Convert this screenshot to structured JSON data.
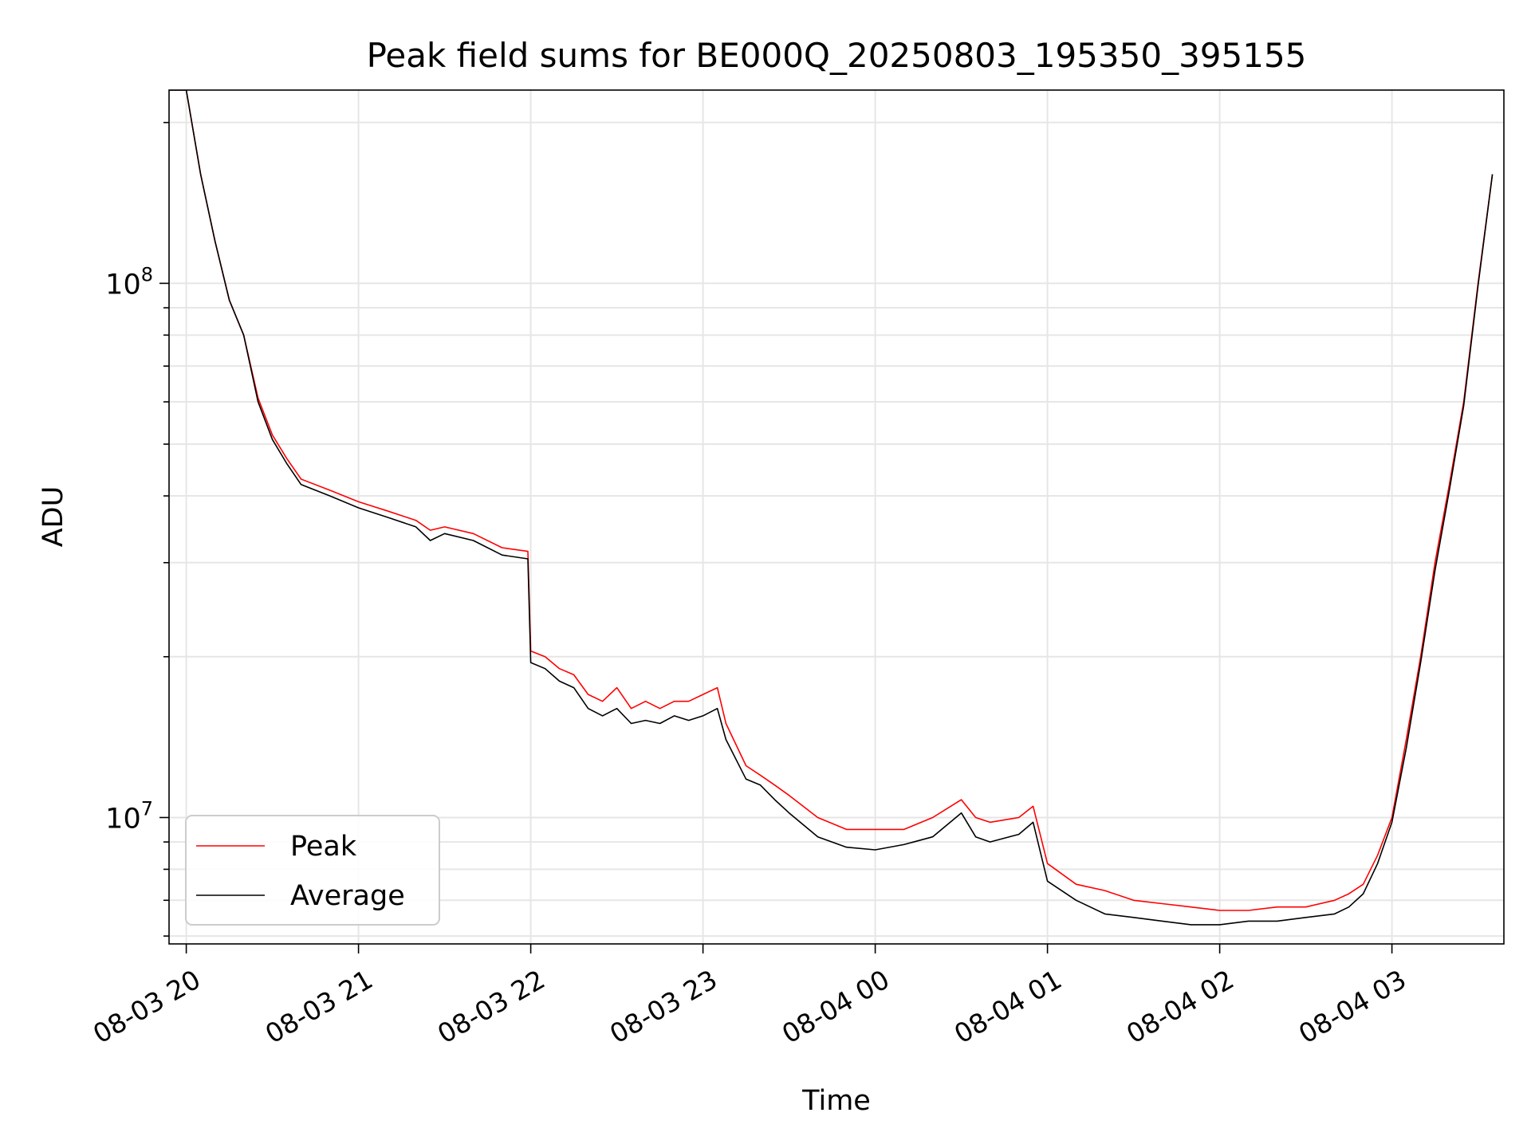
{
  "chart_data": {
    "type": "line",
    "title": "Peak field sums for BE000Q_20250803_195350_395155",
    "xlabel": "Time",
    "ylabel": "ADU",
    "y_scale": "log",
    "grid": true,
    "legend_position": "lower-left",
    "xlim": [
      "2025-08-03 19:54",
      "2025-08-04 03:39"
    ],
    "ylim": [
      5800000.0,
      230000000.0
    ],
    "x_ticks": [
      {
        "t": "2025-08-03 20:00",
        "label": "08-03 20"
      },
      {
        "t": "2025-08-03 21:00",
        "label": "08-03 21"
      },
      {
        "t": "2025-08-03 22:00",
        "label": "08-03 22"
      },
      {
        "t": "2025-08-03 23:00",
        "label": "08-03 23"
      },
      {
        "t": "2025-08-04 00:00",
        "label": "08-04 00"
      },
      {
        "t": "2025-08-04 01:00",
        "label": "08-04 01"
      },
      {
        "t": "2025-08-04 02:00",
        "label": "08-04 02"
      },
      {
        "t": "2025-08-04 03:00",
        "label": "08-04 03"
      }
    ],
    "y_major_ticks": [
      {
        "value": 10000000,
        "base": "10",
        "exp": "7"
      },
      {
        "value": 100000000,
        "base": "10",
        "exp": "8"
      }
    ],
    "y_minor_ticks": [
      6000000,
      7000000,
      8000000,
      9000000,
      20000000,
      30000000,
      40000000,
      50000000,
      60000000,
      70000000,
      80000000,
      90000000,
      200000000
    ],
    "series": [
      {
        "name": "Peak",
        "color": "#ff0000",
        "x": [
          "2025-08-03 19:54",
          "2025-08-03 20:00",
          "2025-08-03 20:05",
          "2025-08-03 20:10",
          "2025-08-03 20:15",
          "2025-08-03 20:20",
          "2025-08-03 20:25",
          "2025-08-03 20:30",
          "2025-08-03 20:35",
          "2025-08-03 20:40",
          "2025-08-03 20:50",
          "2025-08-03 21:00",
          "2025-08-03 21:10",
          "2025-08-03 21:20",
          "2025-08-03 21:25",
          "2025-08-03 21:30",
          "2025-08-03 21:40",
          "2025-08-03 21:50",
          "2025-08-03 21:59",
          "2025-08-03 22:00",
          "2025-08-03 22:05",
          "2025-08-03 22:10",
          "2025-08-03 22:15",
          "2025-08-03 22:20",
          "2025-08-03 22:25",
          "2025-08-03 22:30",
          "2025-08-03 22:35",
          "2025-08-03 22:40",
          "2025-08-03 22:45",
          "2025-08-03 22:50",
          "2025-08-03 22:55",
          "2025-08-03 23:00",
          "2025-08-03 23:05",
          "2025-08-03 23:08",
          "2025-08-03 23:15",
          "2025-08-03 23:20",
          "2025-08-03 23:25",
          "2025-08-03 23:30",
          "2025-08-03 23:40",
          "2025-08-03 23:50",
          "2025-08-04 00:00",
          "2025-08-04 00:10",
          "2025-08-04 00:20",
          "2025-08-04 00:30",
          "2025-08-04 00:35",
          "2025-08-04 00:40",
          "2025-08-04 00:50",
          "2025-08-04 00:55",
          "2025-08-04 01:00",
          "2025-08-04 01:10",
          "2025-08-04 01:20",
          "2025-08-04 01:30",
          "2025-08-04 01:40",
          "2025-08-04 01:50",
          "2025-08-04 02:00",
          "2025-08-04 02:10",
          "2025-08-04 02:20",
          "2025-08-04 02:30",
          "2025-08-04 02:40",
          "2025-08-04 02:45",
          "2025-08-04 02:50",
          "2025-08-04 02:55",
          "2025-08-04 03:00",
          "2025-08-04 03:05",
          "2025-08-04 03:10",
          "2025-08-04 03:15",
          "2025-08-04 03:20",
          "2025-08-04 03:25",
          "2025-08-04 03:30",
          "2025-08-04 03:35"
        ],
        "y": [
          230000000,
          230000000,
          160000000,
          120000000,
          93000000,
          80000000,
          61000000,
          52000000,
          47000000,
          43000000,
          41000000,
          39000000,
          37500000,
          36000000,
          34500000,
          35000000,
          34000000,
          32000000,
          31500000,
          20500000,
          20000000,
          19000000,
          18500000,
          17000000,
          16500000,
          17500000,
          16000000,
          16500000,
          16000000,
          16500000,
          16500000,
          17000000,
          17500000,
          15000000,
          12500000,
          12000000,
          11500000,
          11000000,
          10000000,
          9500000,
          9500000,
          9500000,
          10000000,
          10800000,
          10000000,
          9800000,
          10000000,
          10500000,
          8200000,
          7500000,
          7300000,
          7000000,
          6900000,
          6800000,
          6700000,
          6700000,
          6800000,
          6800000,
          7000000,
          7200000,
          7500000,
          8500000,
          10000000,
          14000000,
          20000000,
          30000000,
          42000000,
          60000000,
          100000000,
          160000000
        ]
      },
      {
        "name": "Average",
        "color": "#000000",
        "x": [
          "2025-08-03 19:54",
          "2025-08-03 20:00",
          "2025-08-03 20:05",
          "2025-08-03 20:10",
          "2025-08-03 20:15",
          "2025-08-03 20:20",
          "2025-08-03 20:25",
          "2025-08-03 20:30",
          "2025-08-03 20:35",
          "2025-08-03 20:40",
          "2025-08-03 20:50",
          "2025-08-03 21:00",
          "2025-08-03 21:10",
          "2025-08-03 21:20",
          "2025-08-03 21:25",
          "2025-08-03 21:30",
          "2025-08-03 21:40",
          "2025-08-03 21:50",
          "2025-08-03 21:59",
          "2025-08-03 22:00",
          "2025-08-03 22:05",
          "2025-08-03 22:10",
          "2025-08-03 22:15",
          "2025-08-03 22:20",
          "2025-08-03 22:25",
          "2025-08-03 22:30",
          "2025-08-03 22:35",
          "2025-08-03 22:40",
          "2025-08-03 22:45",
          "2025-08-03 22:50",
          "2025-08-03 22:55",
          "2025-08-03 23:00",
          "2025-08-03 23:05",
          "2025-08-03 23:08",
          "2025-08-03 23:15",
          "2025-08-03 23:20",
          "2025-08-03 23:25",
          "2025-08-03 23:30",
          "2025-08-03 23:40",
          "2025-08-03 23:50",
          "2025-08-04 00:00",
          "2025-08-04 00:10",
          "2025-08-04 00:20",
          "2025-08-04 00:30",
          "2025-08-04 00:35",
          "2025-08-04 00:40",
          "2025-08-04 00:50",
          "2025-08-04 00:55",
          "2025-08-04 01:00",
          "2025-08-04 01:10",
          "2025-08-04 01:20",
          "2025-08-04 01:30",
          "2025-08-04 01:40",
          "2025-08-04 01:50",
          "2025-08-04 02:00",
          "2025-08-04 02:10",
          "2025-08-04 02:20",
          "2025-08-04 02:30",
          "2025-08-04 02:40",
          "2025-08-04 02:45",
          "2025-08-04 02:50",
          "2025-08-04 02:55",
          "2025-08-04 03:00",
          "2025-08-04 03:05",
          "2025-08-04 03:10",
          "2025-08-04 03:15",
          "2025-08-04 03:20",
          "2025-08-04 03:25",
          "2025-08-04 03:30",
          "2025-08-04 03:35"
        ],
        "y": [
          230000000,
          230000000,
          160000000,
          120000000,
          93000000,
          80000000,
          60000000,
          51000000,
          46000000,
          42000000,
          40000000,
          38000000,
          36500000,
          35000000,
          33000000,
          34000000,
          33000000,
          31000000,
          30500000,
          19500000,
          19000000,
          18000000,
          17500000,
          16000000,
          15500000,
          16000000,
          15000000,
          15200000,
          15000000,
          15500000,
          15200000,
          15500000,
          16000000,
          14000000,
          11800000,
          11500000,
          10800000,
          10200000,
          9200000,
          8800000,
          8700000,
          8900000,
          9200000,
          10200000,
          9200000,
          9000000,
          9300000,
          9800000,
          7600000,
          7000000,
          6600000,
          6500000,
          6400000,
          6300000,
          6300000,
          6400000,
          6400000,
          6500000,
          6600000,
          6800000,
          7200000,
          8200000,
          9800000,
          13500000,
          19500000,
          29000000,
          41000000,
          59000000,
          99000000,
          160000000
        ]
      }
    ]
  }
}
